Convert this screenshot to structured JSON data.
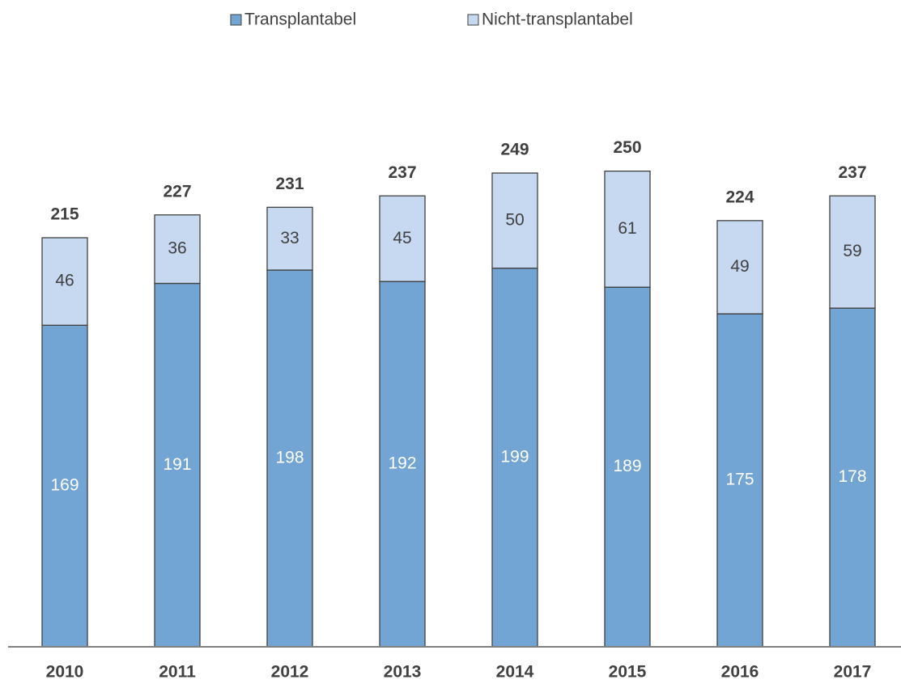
{
  "chart_data": {
    "type": "stacked_bar",
    "categories": [
      "2010",
      "2011",
      "2012",
      "2013",
      "2014",
      "2015",
      "2016",
      "2017"
    ],
    "series": [
      {
        "name": "Transplantabel",
        "color": "#72a4d4",
        "values": [
          169,
          191,
          198,
          192,
          199,
          189,
          175,
          178
        ]
      },
      {
        "name": "Nicht-transplantabel",
        "color": "#c6d9f0",
        "values": [
          46,
          36,
          33,
          45,
          50,
          61,
          49,
          59
        ]
      }
    ],
    "totals": [
      215,
      227,
      231,
      237,
      249,
      250,
      224,
      237
    ],
    "ylim": [
      0,
      300
    ],
    "legend": "top"
  }
}
